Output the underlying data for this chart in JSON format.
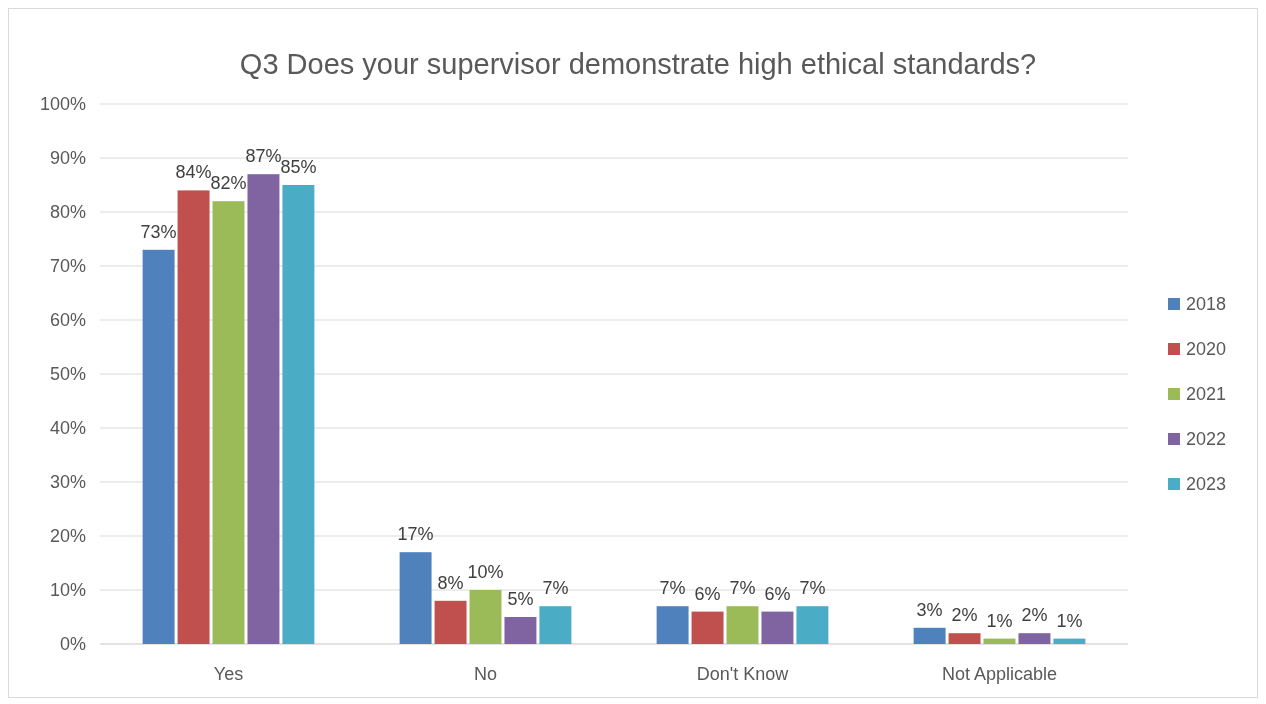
{
  "chart_data": {
    "type": "bar",
    "title": "Q3 Does your supervisor demonstrate high ethical standards?",
    "categories": [
      "Yes",
      "No",
      "Don't Know",
      "Not Applicable"
    ],
    "series": [
      {
        "name": "2018",
        "color": "#4f81bd",
        "values": [
          73,
          17,
          7,
          3
        ],
        "value_labels": [
          "73%",
          "17%",
          "7%",
          "3%"
        ]
      },
      {
        "name": "2020",
        "color": "#c0504d",
        "values": [
          84,
          8,
          6,
          2
        ],
        "value_labels": [
          "84%",
          "8%",
          "6%",
          "2%"
        ]
      },
      {
        "name": "2021",
        "color": "#9bbb59",
        "values": [
          82,
          10,
          7,
          1
        ],
        "value_labels": [
          "82%",
          "10%",
          "7%",
          "1%"
        ]
      },
      {
        "name": "2022",
        "color": "#8064a2",
        "values": [
          87,
          5,
          6,
          2
        ],
        "value_labels": [
          "87%",
          "5%",
          "6%",
          "2%"
        ]
      },
      {
        "name": "2023",
        "color": "#4bacc6",
        "values": [
          85,
          7,
          7,
          1
        ],
        "value_labels": [
          "85%",
          "7%",
          "7%",
          "1%"
        ]
      }
    ],
    "ylim": [
      0,
      100
    ],
    "yticks": [
      {
        "value": 0,
        "label": "0%"
      },
      {
        "value": 10,
        "label": "10%"
      },
      {
        "value": 20,
        "label": "20%"
      },
      {
        "value": 30,
        "label": "30%"
      },
      {
        "value": 40,
        "label": "40%"
      },
      {
        "value": 50,
        "label": "50%"
      },
      {
        "value": 60,
        "label": "60%"
      },
      {
        "value": 70,
        "label": "70%"
      },
      {
        "value": 80,
        "label": "80%"
      },
      {
        "value": 90,
        "label": "90%"
      },
      {
        "value": 100,
        "label": "100%"
      }
    ],
    "grid": "y",
    "legend": "right"
  }
}
